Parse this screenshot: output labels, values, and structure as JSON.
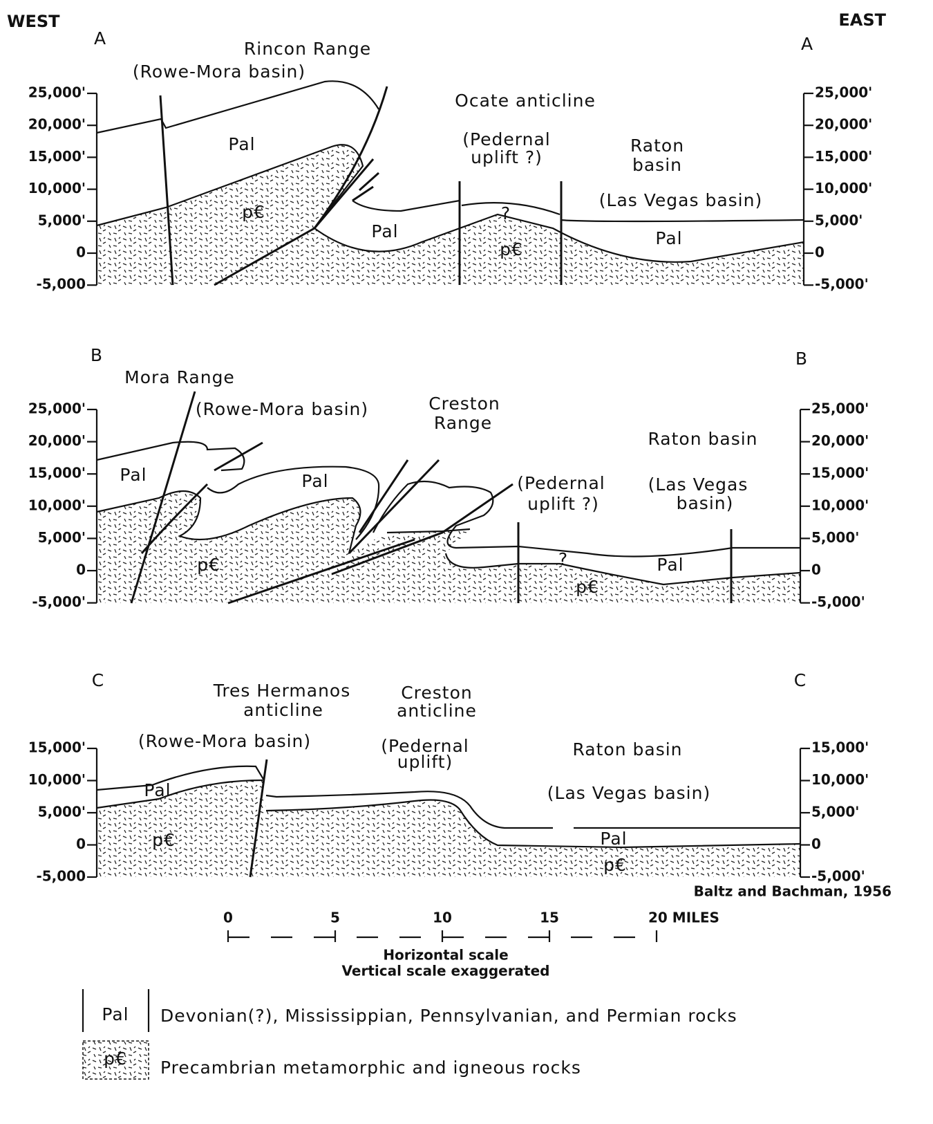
{
  "header": {
    "west": "WEST",
    "east": "EAST"
  },
  "sections": [
    {
      "letter_left": "A",
      "letter_right": "A",
      "ticks_left": [
        "25,000'",
        "20,000'",
        "15,000'",
        "10,000'",
        "5,000'",
        "0",
        "-5,000"
      ],
      "ticks_right": [
        "25,000'",
        "20,000'",
        "15,000'",
        "10,000'",
        "5,000'",
        "0",
        "-5,000'"
      ],
      "labels": [
        "Rincon Range",
        "(Rowe-Mora basin)",
        "Ocate anticline",
        "(Pedernal",
        "uplift ?)",
        "Raton",
        "basin",
        "(Las Vegas basin)",
        "Pal",
        "p€",
        "Pal",
        "p€",
        "?",
        "Pal"
      ]
    },
    {
      "letter_left": "B",
      "letter_right": "B",
      "ticks_left": [
        "25,000'",
        "20,000'",
        "15,000'",
        "10,000'",
        "5,000'",
        "0",
        "-5,000'"
      ],
      "ticks_right": [
        "25,000'",
        "20,000'",
        "15,000'",
        "10,000'",
        "5,000'",
        "0",
        "-5,000'"
      ],
      "labels": [
        "Mora Range",
        "(Rowe-Mora basin)",
        "Creston",
        "Range",
        "(Pedernal",
        "uplift ?)",
        "Raton basin",
        "(Las Vegas",
        "basin)",
        "Pal",
        "Pal",
        "p€",
        "?",
        "p€",
        "Pal"
      ]
    },
    {
      "letter_left": "C",
      "letter_right": "C",
      "ticks_left": [
        "15,000'",
        "10,000'",
        "5,000'",
        "0",
        "-5,000"
      ],
      "ticks_right": [
        "15,000'",
        "10,000'",
        "5,000'",
        "0",
        "-5,000'"
      ],
      "labels": [
        "Tres Hermanos",
        "anticline",
        "Creston",
        "anticline",
        "(Rowe-Mora basin)",
        "(Pedernal",
        "uplift)",
        "Raton basin",
        "(Las Vegas basin)",
        "Pal",
        "p€",
        "Pal",
        "p€"
      ]
    }
  ],
  "credit": "Baltz and Bachman, 1956",
  "scale": {
    "ticks": [
      "0",
      "5",
      "10",
      "15",
      "20 MILES"
    ],
    "caption": [
      "Horizontal scale",
      "Vertical scale exaggerated"
    ]
  },
  "legend": [
    {
      "symbol": "Pal",
      "text": "Devonian(?), Mississippian, Pennsylvanian, and Permian rocks"
    },
    {
      "symbol": "p€",
      "text": "Precambrian metamorphic and igneous rocks"
    }
  ]
}
